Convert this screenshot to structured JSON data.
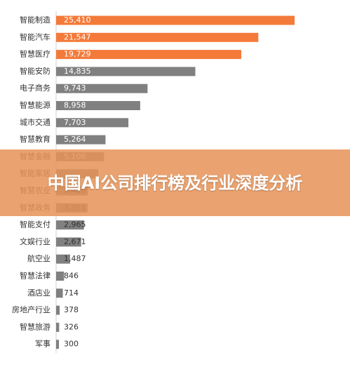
{
  "chart_data": {
    "type": "hbar",
    "title": "中国AI公司排行榜及行业深度分析",
    "categories": [
      "智能制造",
      "智能汽车",
      "智慧医疗",
      "智能安防",
      "电子商务",
      "智慧能源",
      "城市交通",
      "智慧教育",
      "智慧金融",
      "智能家居",
      "智慧农业",
      "智慧政务",
      "智能支付",
      "文娱行业",
      "航空业",
      "智慧法律",
      "酒店业",
      "房地产行业",
      "智慧旅游",
      "军事"
    ],
    "values": [
      25410,
      21547,
      19729,
      14835,
      9743,
      8958,
      7703,
      5264,
      5106,
      4500,
      3410,
      3351,
      2965,
      2671,
      1487,
      846,
      714,
      378,
      326,
      300
    ],
    "value_labels": [
      "25,410",
      "21,547",
      "19,729",
      "14,835",
      "9,743",
      "8,958",
      "7,703",
      "5,264",
      "5,106",
      null,
      "3,410",
      "3,351",
      "2,965",
      "2,671",
      "1,487",
      "846",
      "714",
      "378",
      "326",
      "300"
    ],
    "colors": [
      "#f47a3a",
      "#f47a3a",
      "#f47a3a",
      "#808080",
      "#808080",
      "#808080",
      "#808080",
      "#808080",
      "#808080",
      "#808080",
      "#808080",
      "#808080",
      "#808080",
      "#808080",
      "#808080",
      "#808080",
      "#808080",
      "#808080",
      "#808080",
      "#808080"
    ]
  }
}
